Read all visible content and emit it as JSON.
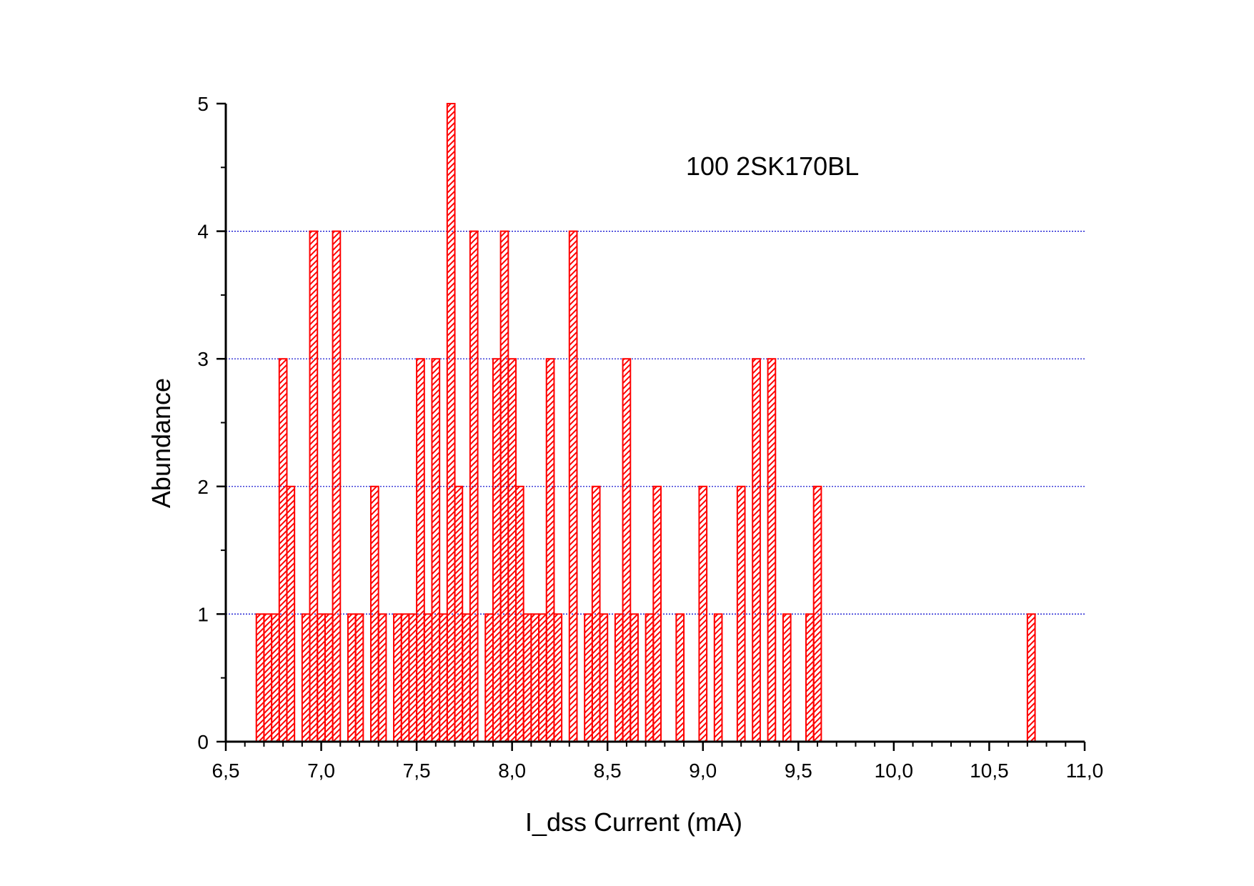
{
  "chart_data": {
    "type": "bar",
    "subtype": "histogram",
    "xlabel": "I_dss Current (mA)",
    "ylabel": "Abundance",
    "annotation": "100 2SK170BL",
    "xlim": [
      6.5,
      11.0
    ],
    "ylim": [
      0,
      5
    ],
    "x_ticks": [
      6.5,
      7.0,
      7.5,
      8.0,
      8.5,
      9.0,
      9.5,
      10.0,
      10.5,
      11.0
    ],
    "x_tick_labels": [
      "6,5",
      "7,0",
      "7,5",
      "8,0",
      "8,5",
      "9,0",
      "9,5",
      "10,0",
      "10,5",
      "11,0"
    ],
    "y_ticks": [
      0,
      1,
      2,
      3,
      4,
      5
    ],
    "y_tick_labels": [
      "0",
      "1",
      "2",
      "3",
      "4",
      "5"
    ],
    "bin_width": 0.04,
    "grid": {
      "horizontal": true,
      "vertical": false,
      "style": "dotted",
      "color": "#0000cc",
      "values": [
        1,
        2,
        3,
        4
      ]
    },
    "bar_style": {
      "stroke": "#ff0000",
      "fill": "none",
      "hatch": "diagonal",
      "hatch_color": "#ff0000"
    },
    "series": [
      {
        "bins": [
          {
            "x": 6.68,
            "count": 1
          },
          {
            "x": 6.72,
            "count": 1
          },
          {
            "x": 6.76,
            "count": 1
          },
          {
            "x": 6.8,
            "count": 3
          },
          {
            "x": 6.84,
            "count": 2
          },
          {
            "x": 6.92,
            "count": 1
          },
          {
            "x": 6.96,
            "count": 4
          },
          {
            "x": 7.0,
            "count": 1
          },
          {
            "x": 7.04,
            "count": 1
          },
          {
            "x": 7.08,
            "count": 4
          },
          {
            "x": 7.16,
            "count": 1
          },
          {
            "x": 7.2,
            "count": 1
          },
          {
            "x": 7.28,
            "count": 2
          },
          {
            "x": 7.32,
            "count": 1
          },
          {
            "x": 7.4,
            "count": 1
          },
          {
            "x": 7.44,
            "count": 1
          },
          {
            "x": 7.48,
            "count": 1
          },
          {
            "x": 7.52,
            "count": 3
          },
          {
            "x": 7.56,
            "count": 1
          },
          {
            "x": 7.6,
            "count": 3
          },
          {
            "x": 7.64,
            "count": 1
          },
          {
            "x": 7.68,
            "count": 5
          },
          {
            "x": 7.72,
            "count": 2
          },
          {
            "x": 7.76,
            "count": 1
          },
          {
            "x": 7.8,
            "count": 4
          },
          {
            "x": 7.88,
            "count": 1
          },
          {
            "x": 7.92,
            "count": 3
          },
          {
            "x": 7.96,
            "count": 4
          },
          {
            "x": 8.0,
            "count": 3
          },
          {
            "x": 8.04,
            "count": 2
          },
          {
            "x": 8.08,
            "count": 1
          },
          {
            "x": 8.12,
            "count": 1
          },
          {
            "x": 8.16,
            "count": 1
          },
          {
            "x": 8.2,
            "count": 3
          },
          {
            "x": 8.24,
            "count": 1
          },
          {
            "x": 8.32,
            "count": 4
          },
          {
            "x": 8.4,
            "count": 1
          },
          {
            "x": 8.44,
            "count": 2
          },
          {
            "x": 8.48,
            "count": 1
          },
          {
            "x": 8.56,
            "count": 1
          },
          {
            "x": 8.6,
            "count": 3
          },
          {
            "x": 8.64,
            "count": 1
          },
          {
            "x": 8.72,
            "count": 1
          },
          {
            "x": 8.76,
            "count": 2
          },
          {
            "x": 8.88,
            "count": 1
          },
          {
            "x": 9.0,
            "count": 2
          },
          {
            "x": 9.08,
            "count": 1
          },
          {
            "x": 9.2,
            "count": 2
          },
          {
            "x": 9.28,
            "count": 3
          },
          {
            "x": 9.36,
            "count": 3
          },
          {
            "x": 9.44,
            "count": 1
          },
          {
            "x": 9.56,
            "count": 1
          },
          {
            "x": 9.6,
            "count": 2
          },
          {
            "x": 10.72,
            "count": 1
          }
        ]
      }
    ]
  }
}
